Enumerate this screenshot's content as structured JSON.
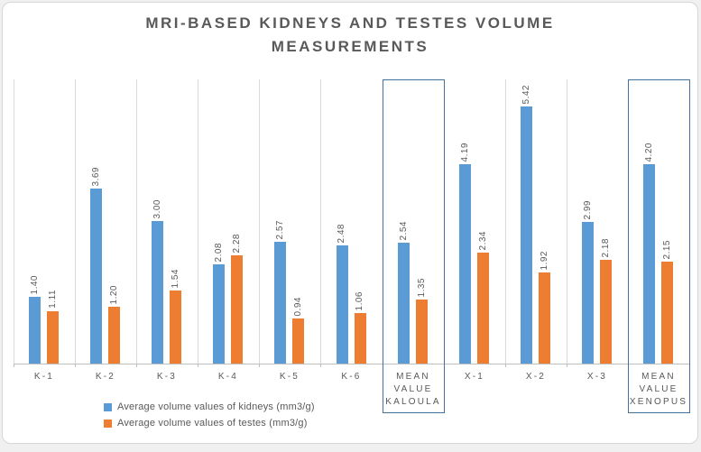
{
  "chart": {
    "title": {
      "line1": "MRI-BASED KIDNEYS AND TESTES VOLUME",
      "line2": "MEASUREMENTS"
    }
  },
  "chart_data": {
    "type": "bar",
    "title": "MRI-BASED KIDNEYS AND TESTES VOLUME MEASUREMENTS",
    "categories": [
      "K-1",
      "K-2",
      "K-3",
      "K-4",
      "K-5",
      "K-6",
      "MEAN VALUE KALOULA",
      "X-1",
      "X-2",
      "X-3",
      "MEAN VALUE XENOPUS"
    ],
    "series": [
      {
        "name": "Average volume values of kidneys (mm3/g)",
        "color": "#5b9bd5",
        "values": [
          1.4,
          3.69,
          3.0,
          2.08,
          2.57,
          2.48,
          2.54,
          4.19,
          5.42,
          2.99,
          4.2
        ]
      },
      {
        "name": "Average volume values of testes (mm3/g)",
        "color": "#ed7d31",
        "values": [
          1.11,
          1.2,
          1.54,
          2.28,
          0.94,
          1.06,
          1.35,
          2.34,
          1.92,
          2.18,
          2.15
        ]
      }
    ],
    "highlighted_categories": [
      6,
      10
    ],
    "ylim": [
      0,
      6
    ],
    "data_labels": true,
    "data_label_format": "0.00",
    "data_label_rotation": "vertical",
    "legend_position": "bottom-left",
    "gridlines": "vertical",
    "y_axis_labels": "none"
  },
  "colors": {
    "series_kidneys": "#5b9bd5",
    "series_testes": "#ed7d31",
    "highlight_box_border": "#41719c",
    "gridline": "#d9d9d9",
    "axis_line": "#bfbfbf",
    "text_gray": "#595959",
    "frame_border": "#d7d7d7",
    "frame_background": "#ffffff",
    "page_background": "#f0f0f0"
  }
}
